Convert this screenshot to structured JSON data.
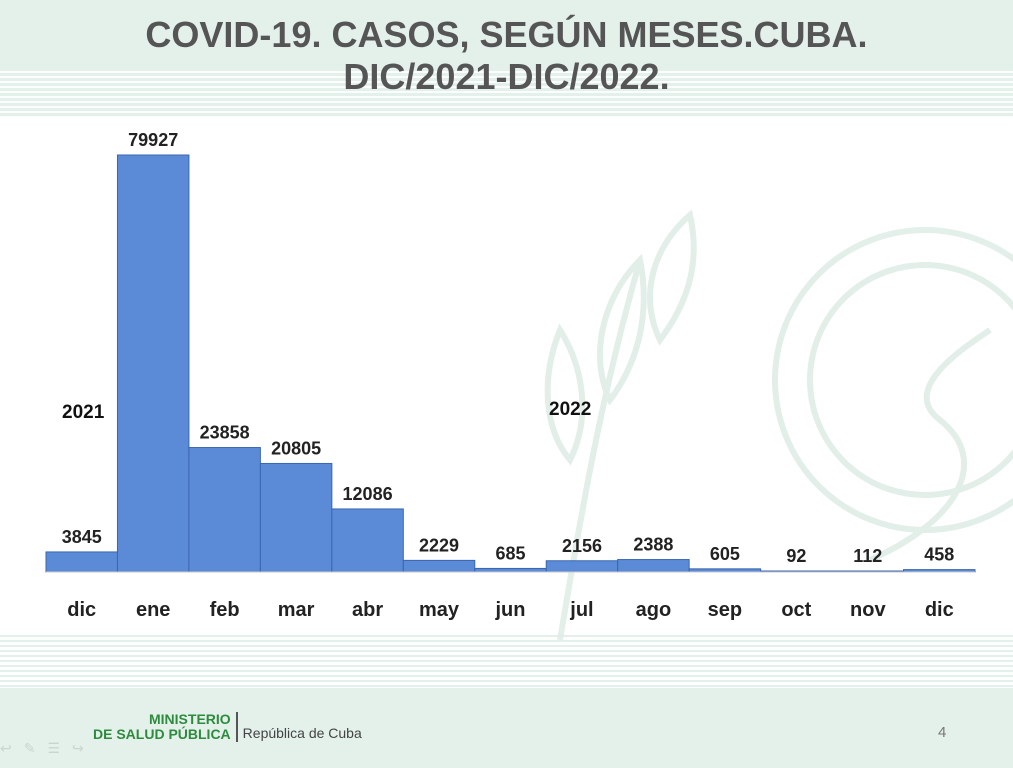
{
  "title": {
    "line1": "COVID-19. CASOS, SEGÚN MESES.CUBA.",
    "line2": "DIC/2021-DIC/2022."
  },
  "chart_data": {
    "type": "bar",
    "categories": [
      "dic",
      "ene",
      "feb",
      "mar",
      "abr",
      "may",
      "jun",
      "jul",
      "ago",
      "sep",
      "oct",
      "nov",
      "dic"
    ],
    "values": [
      3845,
      79927,
      23858,
      20805,
      12086,
      2229,
      685,
      2156,
      2388,
      605,
      92,
      112,
      458
    ],
    "year_annotations": [
      "2021",
      "2022"
    ],
    "bar_color": "#5b8bd6",
    "bar_edge_color": "#3a66b0",
    "ylim": [
      0,
      79927
    ],
    "grid": false,
    "legend": "none"
  },
  "footer": {
    "ministry_line1": "MINISTERIO",
    "ministry_line2": "DE SALUD PÚBLICA",
    "republic": "República de Cuba",
    "page_number": "4"
  },
  "colors": {
    "background_band": "#e3f1ea",
    "title_text": "#555555",
    "ministry_green": "#2e8b3e"
  },
  "icons": [
    "left-arrow-icon",
    "pen-icon",
    "menu-icon",
    "right-arrow-icon"
  ]
}
